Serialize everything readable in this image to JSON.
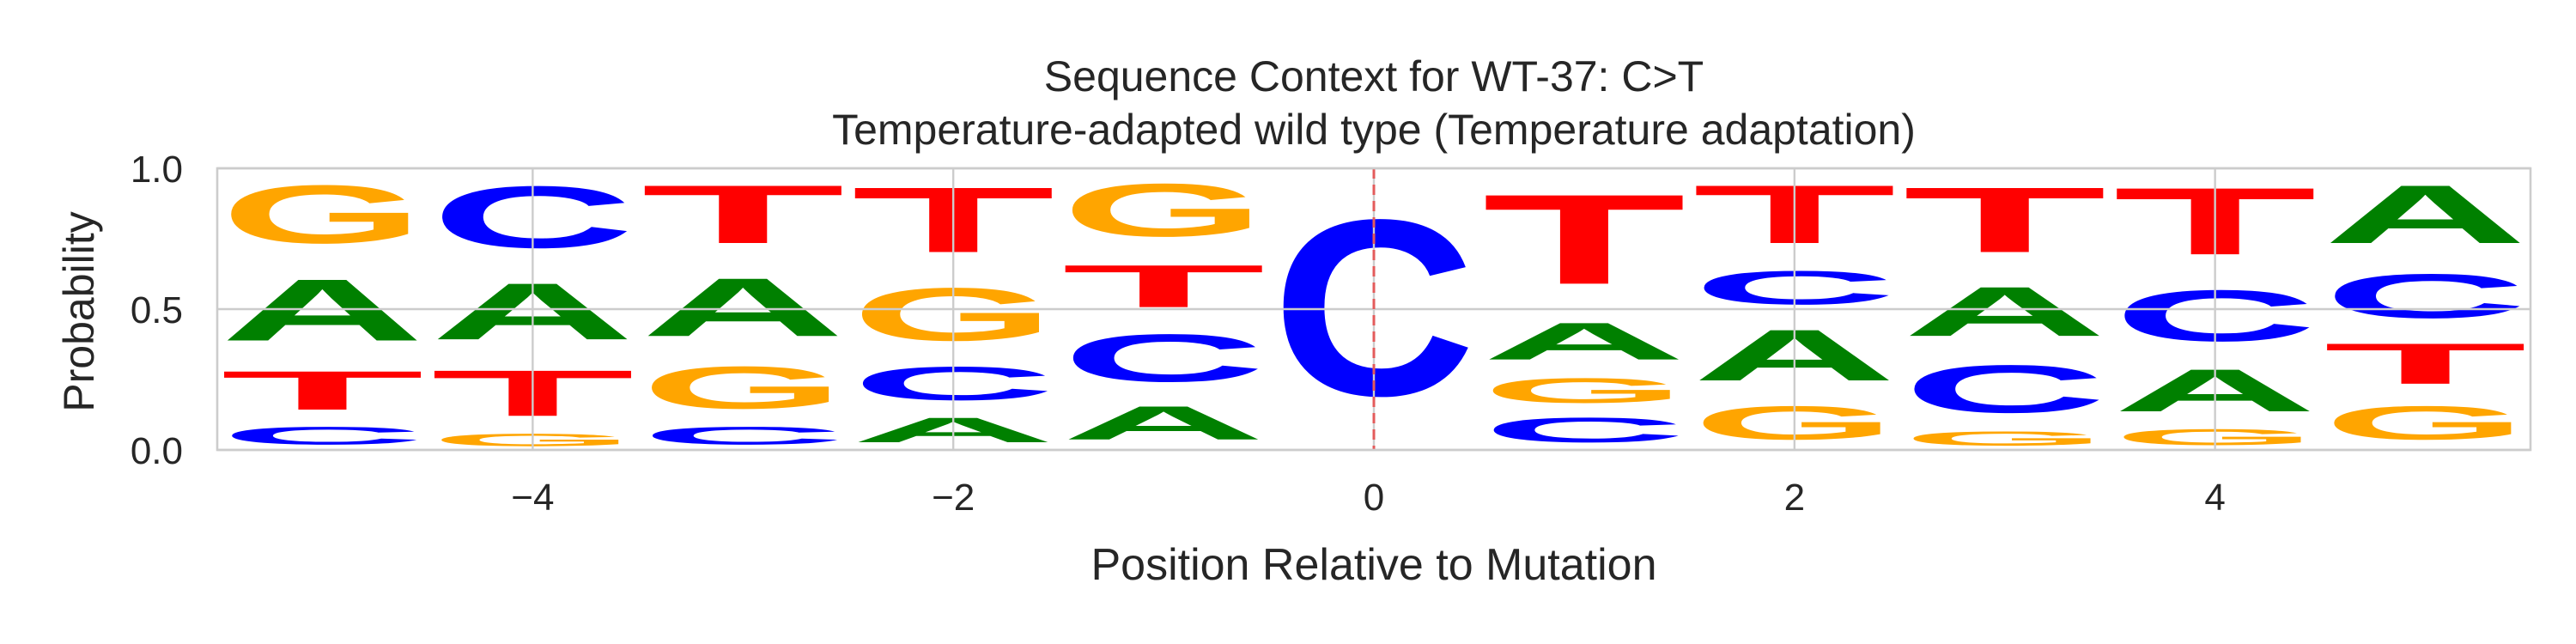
{
  "chart_data": {
    "type": "sequence_logo",
    "title": "Sequence Context for WT-37: C>T",
    "subtitle": "Temperature-adapted wild type (Temperature adaptation)",
    "xlabel": "Position Relative to Mutation",
    "ylabel": "Probability",
    "xlim": [
      -5.5,
      5.5
    ],
    "ylim": [
      0,
      1.0
    ],
    "x_ticks": [
      "−4",
      "−2",
      "0",
      "2",
      "4"
    ],
    "x_tick_values": [
      -4,
      -2,
      0,
      2,
      4
    ],
    "y_ticks": [
      "0.0",
      "0.5",
      "1.0"
    ],
    "y_tick_values": [
      0,
      0.5,
      1.0
    ],
    "grid": true,
    "mutation_position": 0,
    "base_colors": {
      "A": "#008000",
      "C": "#0000ff",
      "G": "#ffa500",
      "T": "#ff0000"
    },
    "positions": [
      {
        "x": -5,
        "stack": [
          {
            "base": "C",
            "p": 0.1
          },
          {
            "base": "T",
            "p": 0.22
          },
          {
            "base": "A",
            "p": 0.35
          },
          {
            "base": "G",
            "p": 0.33
          }
        ]
      },
      {
        "x": -4,
        "stack": [
          {
            "base": "G",
            "p": 0.07
          },
          {
            "base": "T",
            "p": 0.26
          },
          {
            "base": "A",
            "p": 0.32
          },
          {
            "base": "C",
            "p": 0.35
          }
        ]
      },
      {
        "x": -3,
        "stack": [
          {
            "base": "C",
            "p": 0.1
          },
          {
            "base": "G",
            "p": 0.24
          },
          {
            "base": "A",
            "p": 0.33
          },
          {
            "base": "T",
            "p": 0.33
          }
        ]
      },
      {
        "x": -2,
        "stack": [
          {
            "base": "A",
            "p": 0.14
          },
          {
            "base": "C",
            "p": 0.19
          },
          {
            "base": "G",
            "p": 0.3
          },
          {
            "base": "T",
            "p": 0.37
          }
        ]
      },
      {
        "x": -1,
        "stack": [
          {
            "base": "A",
            "p": 0.19
          },
          {
            "base": "C",
            "p": 0.27
          },
          {
            "base": "T",
            "p": 0.24
          },
          {
            "base": "G",
            "p": 0.3
          }
        ]
      },
      {
        "x": 0,
        "stack": [
          {
            "base": "C",
            "p": 1.0
          }
        ]
      },
      {
        "x": 1,
        "stack": [
          {
            "base": "C",
            "p": 0.14
          },
          {
            "base": "G",
            "p": 0.14
          },
          {
            "base": "A",
            "p": 0.21
          },
          {
            "base": "T",
            "p": 0.51
          }
        ]
      },
      {
        "x": 2,
        "stack": [
          {
            "base": "G",
            "p": 0.19
          },
          {
            "base": "A",
            "p": 0.29
          },
          {
            "base": "C",
            "p": 0.19
          },
          {
            "base": "T",
            "p": 0.33
          }
        ]
      },
      {
        "x": 3,
        "stack": [
          {
            "base": "G",
            "p": 0.08
          },
          {
            "base": "C",
            "p": 0.27
          },
          {
            "base": "A",
            "p": 0.28
          },
          {
            "base": "T",
            "p": 0.37
          }
        ]
      },
      {
        "x": 4,
        "stack": [
          {
            "base": "G",
            "p": 0.09
          },
          {
            "base": "A",
            "p": 0.24
          },
          {
            "base": "C",
            "p": 0.29
          },
          {
            "base": "T",
            "p": 0.38
          }
        ]
      },
      {
        "x": 5,
        "stack": [
          {
            "base": "G",
            "p": 0.19
          },
          {
            "base": "T",
            "p": 0.23
          },
          {
            "base": "C",
            "p": 0.25
          },
          {
            "base": "A",
            "p": 0.33
          }
        ]
      }
    ]
  }
}
